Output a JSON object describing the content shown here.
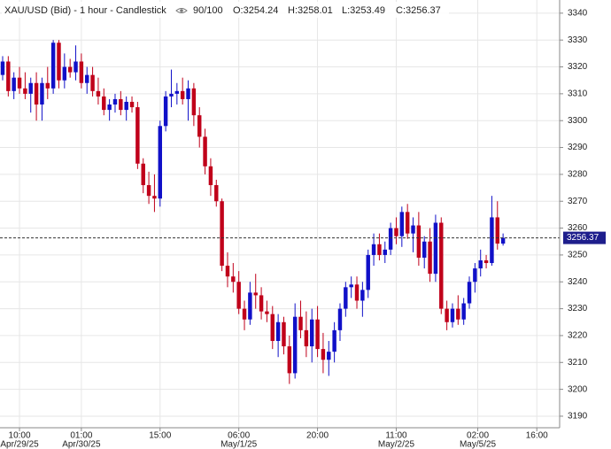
{
  "chart_data": {
    "type": "candlestick",
    "title": "XAU/USD (Bid) - 1 hour - Candlestick",
    "bar_count": "90/100",
    "ohlc_labels": [
      "O:3254.24",
      "H:3258.01",
      "L:3253.49",
      "C:3256.37"
    ],
    "x": [
      0,
      1,
      2,
      3,
      4,
      5,
      6,
      7,
      8,
      9,
      10,
      11,
      12,
      13,
      14,
      15,
      16,
      17,
      18,
      19,
      20,
      21,
      22,
      23,
      24,
      25,
      26,
      27,
      28,
      29,
      30,
      31,
      32,
      33,
      34,
      35,
      36,
      37,
      38,
      39,
      40,
      41,
      42,
      43,
      44,
      45,
      46,
      47,
      48,
      49,
      50,
      51,
      52,
      53,
      54,
      55,
      56,
      57,
      58,
      59,
      60,
      61,
      62,
      63,
      64,
      65,
      66,
      67,
      68,
      69,
      70,
      71,
      72,
      73,
      74,
      75,
      76,
      77,
      78,
      79,
      80,
      81,
      82,
      83,
      84,
      85,
      86,
      87,
      88,
      89
    ],
    "open": [
      3317,
      3322,
      3311,
      3316,
      3312,
      3310,
      3314,
      3306,
      3314,
      3312,
      3329,
      3315,
      3320,
      3318,
      3322,
      3314,
      3317,
      3311,
      3309,
      3304,
      3306,
      3308,
      3304,
      3307,
      3305,
      3284,
      3276,
      3272,
      3271,
      3298,
      3309,
      3310,
      3311,
      3308,
      3312,
      3302,
      3294,
      3283,
      3276,
      3270,
      3246,
      3242,
      3240,
      3230,
      3226,
      3236,
      3235,
      3229,
      3228,
      3218,
      3225,
      3216,
      3206,
      3227,
      3222,
      3216,
      3226,
      3215,
      3211,
      3214,
      3222,
      3230,
      3238,
      3239,
      3233,
      3237,
      3250,
      3254,
      3250,
      3252,
      3260,
      3257,
      3266,
      3258,
      3261,
      3249,
      3255,
      3243,
      3262,
      3230,
      3225,
      3230,
      3226,
      3232,
      3240,
      3245,
      3248,
      3247,
      3264,
      3254.24
    ],
    "high": [
      3324,
      3324,
      3318,
      3320,
      3318,
      3316,
      3318,
      3316,
      3320,
      3330,
      3330,
      3325,
      3323,
      3328,
      3325,
      3320,
      3320,
      3316,
      3312,
      3308,
      3310,
      3311,
      3309,
      3309,
      3307,
      3286,
      3281,
      3280,
      3300,
      3311,
      3319,
      3314,
      3316,
      3315,
      3314,
      3305,
      3297,
      3286,
      3278,
      3271,
      3251,
      3247,
      3244,
      3233,
      3240,
      3243,
      3238,
      3233,
      3231,
      3228,
      3227,
      3220,
      3232,
      3233,
      3229,
      3230,
      3231,
      3221,
      3218,
      3225,
      3232,
      3240,
      3242,
      3242,
      3240,
      3252,
      3258,
      3258,
      3255,
      3262,
      3264,
      3268,
      3269,
      3264,
      3266,
      3257,
      3260,
      3265,
      3264,
      3233,
      3232,
      3235,
      3234,
      3242,
      3247,
      3252,
      3250,
      3272,
      3270,
      3258.01
    ],
    "low": [
      3315,
      3309,
      3308,
      3310,
      3308,
      3303,
      3300,
      3300,
      3308,
      3310,
      3312,
      3312,
      3316,
      3315,
      3312,
      3310,
      3309,
      3306,
      3302,
      3300,
      3303,
      3302,
      3300,
      3303,
      3282,
      3273,
      3269,
      3266,
      3268,
      3296,
      3305,
      3306,
      3306,
      3300,
      3298,
      3290,
      3280,
      3272,
      3268,
      3244,
      3238,
      3236,
      3228,
      3222,
      3224,
      3230,
      3226,
      3225,
      3215,
      3212,
      3213,
      3202,
      3204,
      3219,
      3212,
      3210,
      3212,
      3206,
      3205,
      3210,
      3218,
      3227,
      3234,
      3230,
      3227,
      3234,
      3246,
      3248,
      3247,
      3250,
      3254,
      3253,
      3256,
      3251,
      3246,
      3245,
      3240,
      3240,
      3228,
      3222,
      3223,
      3224,
      3224,
      3230,
      3236,
      3242,
      3245,
      3246,
      3252,
      3253.49
    ],
    "close": [
      3322,
      3311,
      3316,
      3312,
      3310,
      3314,
      3306,
      3314,
      3312,
      3329,
      3315,
      3320,
      3318,
      3322,
      3314,
      3317,
      3311,
      3309,
      3304,
      3306,
      3308,
      3304,
      3307,
      3305,
      3284,
      3276,
      3272,
      3271,
      3298,
      3309,
      3310,
      3311,
      3308,
      3312,
      3302,
      3294,
      3283,
      3276,
      3270,
      3246,
      3242,
      3240,
      3230,
      3226,
      3236,
      3235,
      3229,
      3228,
      3218,
      3225,
      3216,
      3206,
      3227,
      3222,
      3216,
      3226,
      3215,
      3211,
      3214,
      3222,
      3230,
      3238,
      3239,
      3233,
      3237,
      3250,
      3254,
      3250,
      3252,
      3260,
      3257,
      3266,
      3258,
      3261,
      3249,
      3255,
      3243,
      3262,
      3230,
      3225,
      3230,
      3226,
      3232,
      3240,
      3245,
      3248,
      3247,
      3264,
      3254.24,
      3256.37
    ],
    "up_color": "#1010c8",
    "down_color": "#c0001a",
    "last_price": 3256.37,
    "xlim": [
      -0.47,
      99.06
    ],
    "ylim": [
      3185.7,
      3344.9
    ],
    "yticks": [
      3190,
      3200,
      3210,
      3220,
      3230,
      3240,
      3250,
      3260,
      3270,
      3280,
      3290,
      3300,
      3310,
      3320,
      3330,
      3340
    ],
    "xticks": [
      {
        "value": 3,
        "label": "10:00"
      },
      {
        "value": 14,
        "label": "01:00"
      },
      {
        "value": 28,
        "label": "15:00"
      },
      {
        "value": 42,
        "label": "06:00"
      },
      {
        "value": 56,
        "label": "20:00"
      },
      {
        "value": 70,
        "label": "11:00"
      },
      {
        "value": 84.5,
        "label": "02:00"
      },
      {
        "value": 95,
        "label": "16:00"
      }
    ],
    "xtick_dates": [
      {
        "value": 3,
        "label": "Apr/29/25"
      },
      {
        "value": 14,
        "label": "Apr/30/25"
      },
      {
        "value": 42,
        "label": "May/1/25"
      },
      {
        "value": 70,
        "label": "May/2/25"
      },
      {
        "value": 84.5,
        "label": "May/5/25"
      }
    ],
    "grid": true
  }
}
